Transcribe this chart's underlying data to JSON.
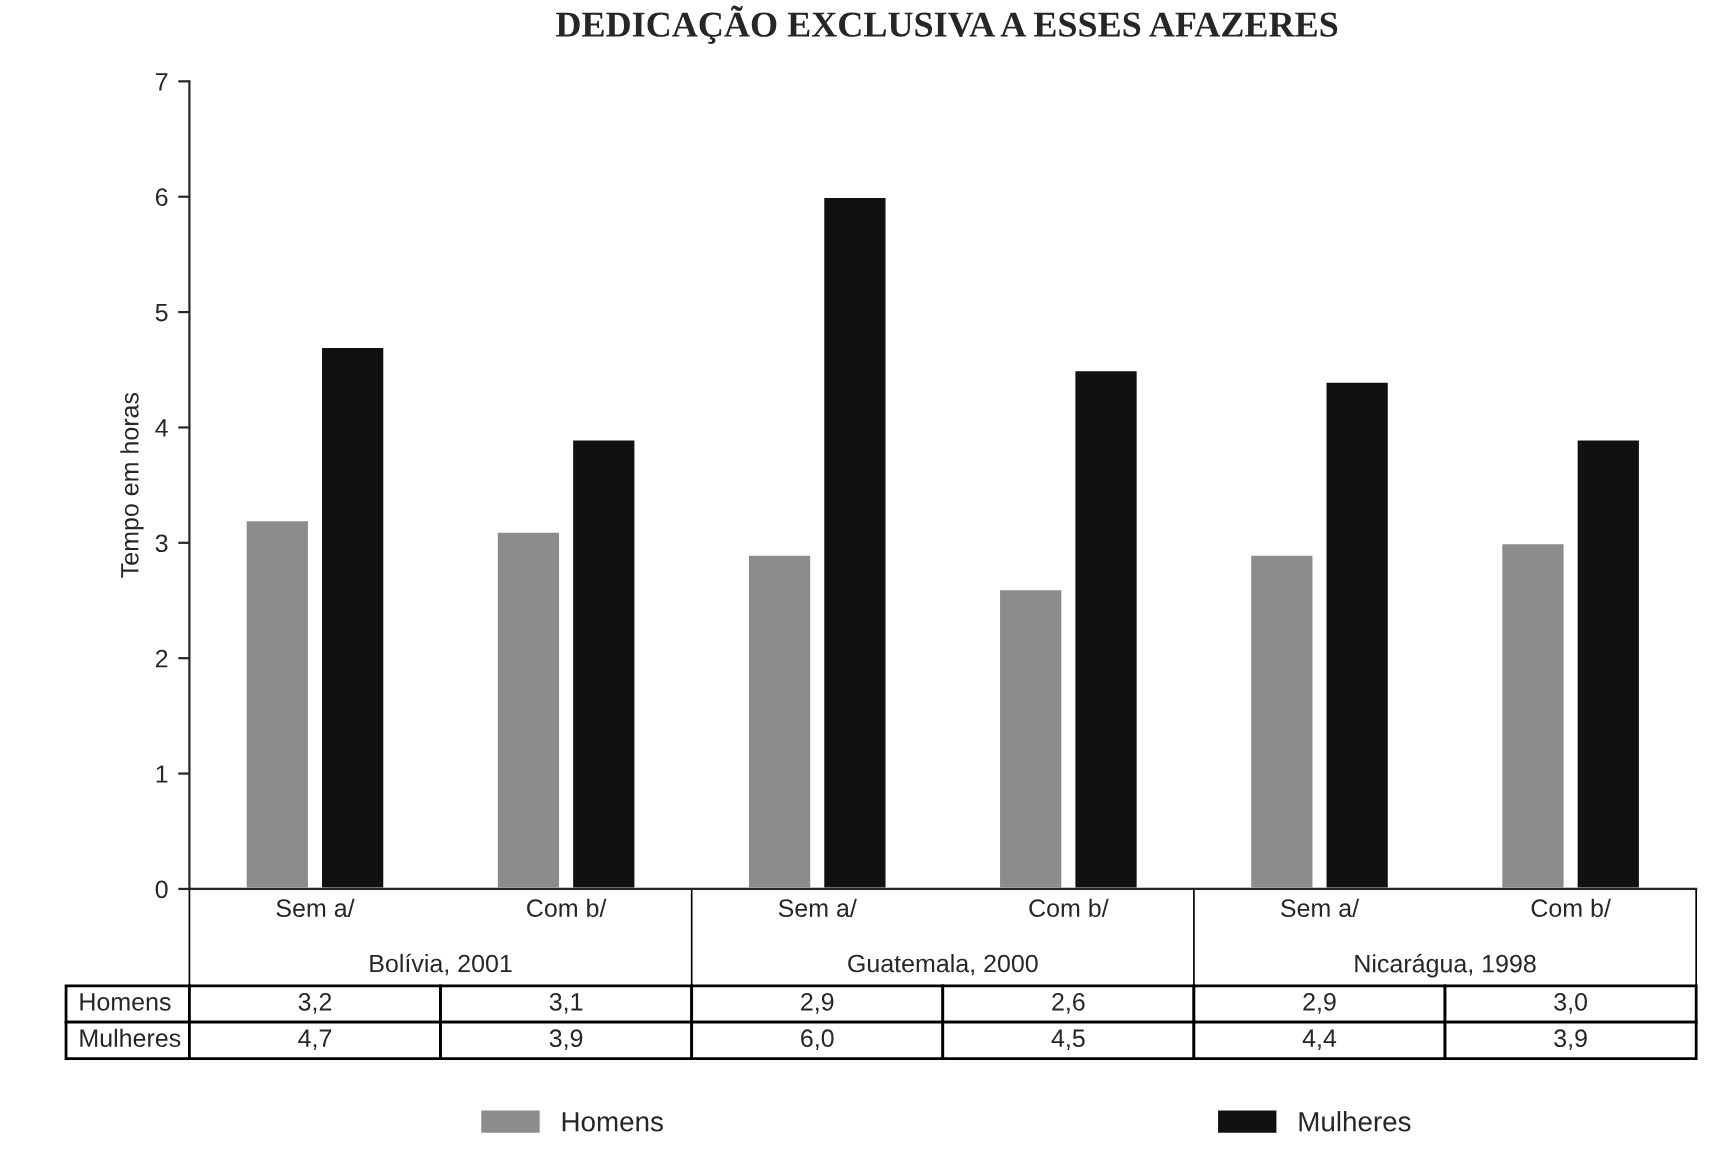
{
  "chart_data": {
    "type": "bar",
    "title": "DEDICAÇÃO EXCLUSIVA A ESSES AFAZERES",
    "ylabel": "Tempo em horas",
    "categories": [
      "Sem a/",
      "Com b/",
      "Sem a/",
      "Com b/",
      "Sem a/",
      "Com b/"
    ],
    "annotations": [
      "Bolívia, 2001",
      "Guatemala, 2000",
      "Nicarágua, 1998"
    ],
    "series": [
      {
        "name": "Homens",
        "color": "#8c8c8c",
        "values": [
          3.2,
          3.1,
          2.9,
          2.6,
          2.9,
          3.0
        ],
        "value_labels": [
          "3,2",
          "3,1",
          "2,9",
          "2,6",
          "2,9",
          "3,0"
        ]
      },
      {
        "name": "Mulheres",
        "color": "#111111",
        "values": [
          4.7,
          3.9,
          6.0,
          4.5,
          4.4,
          3.9
        ],
        "value_labels": [
          "4,7",
          "3,9",
          "6,0",
          "4,5",
          "4,4",
          "3,9"
        ]
      }
    ],
    "ylim": [
      0,
      7
    ],
    "yticks": [
      0,
      1,
      2,
      3,
      4,
      5,
      6,
      7
    ],
    "grid": false,
    "legend": "bottom"
  }
}
